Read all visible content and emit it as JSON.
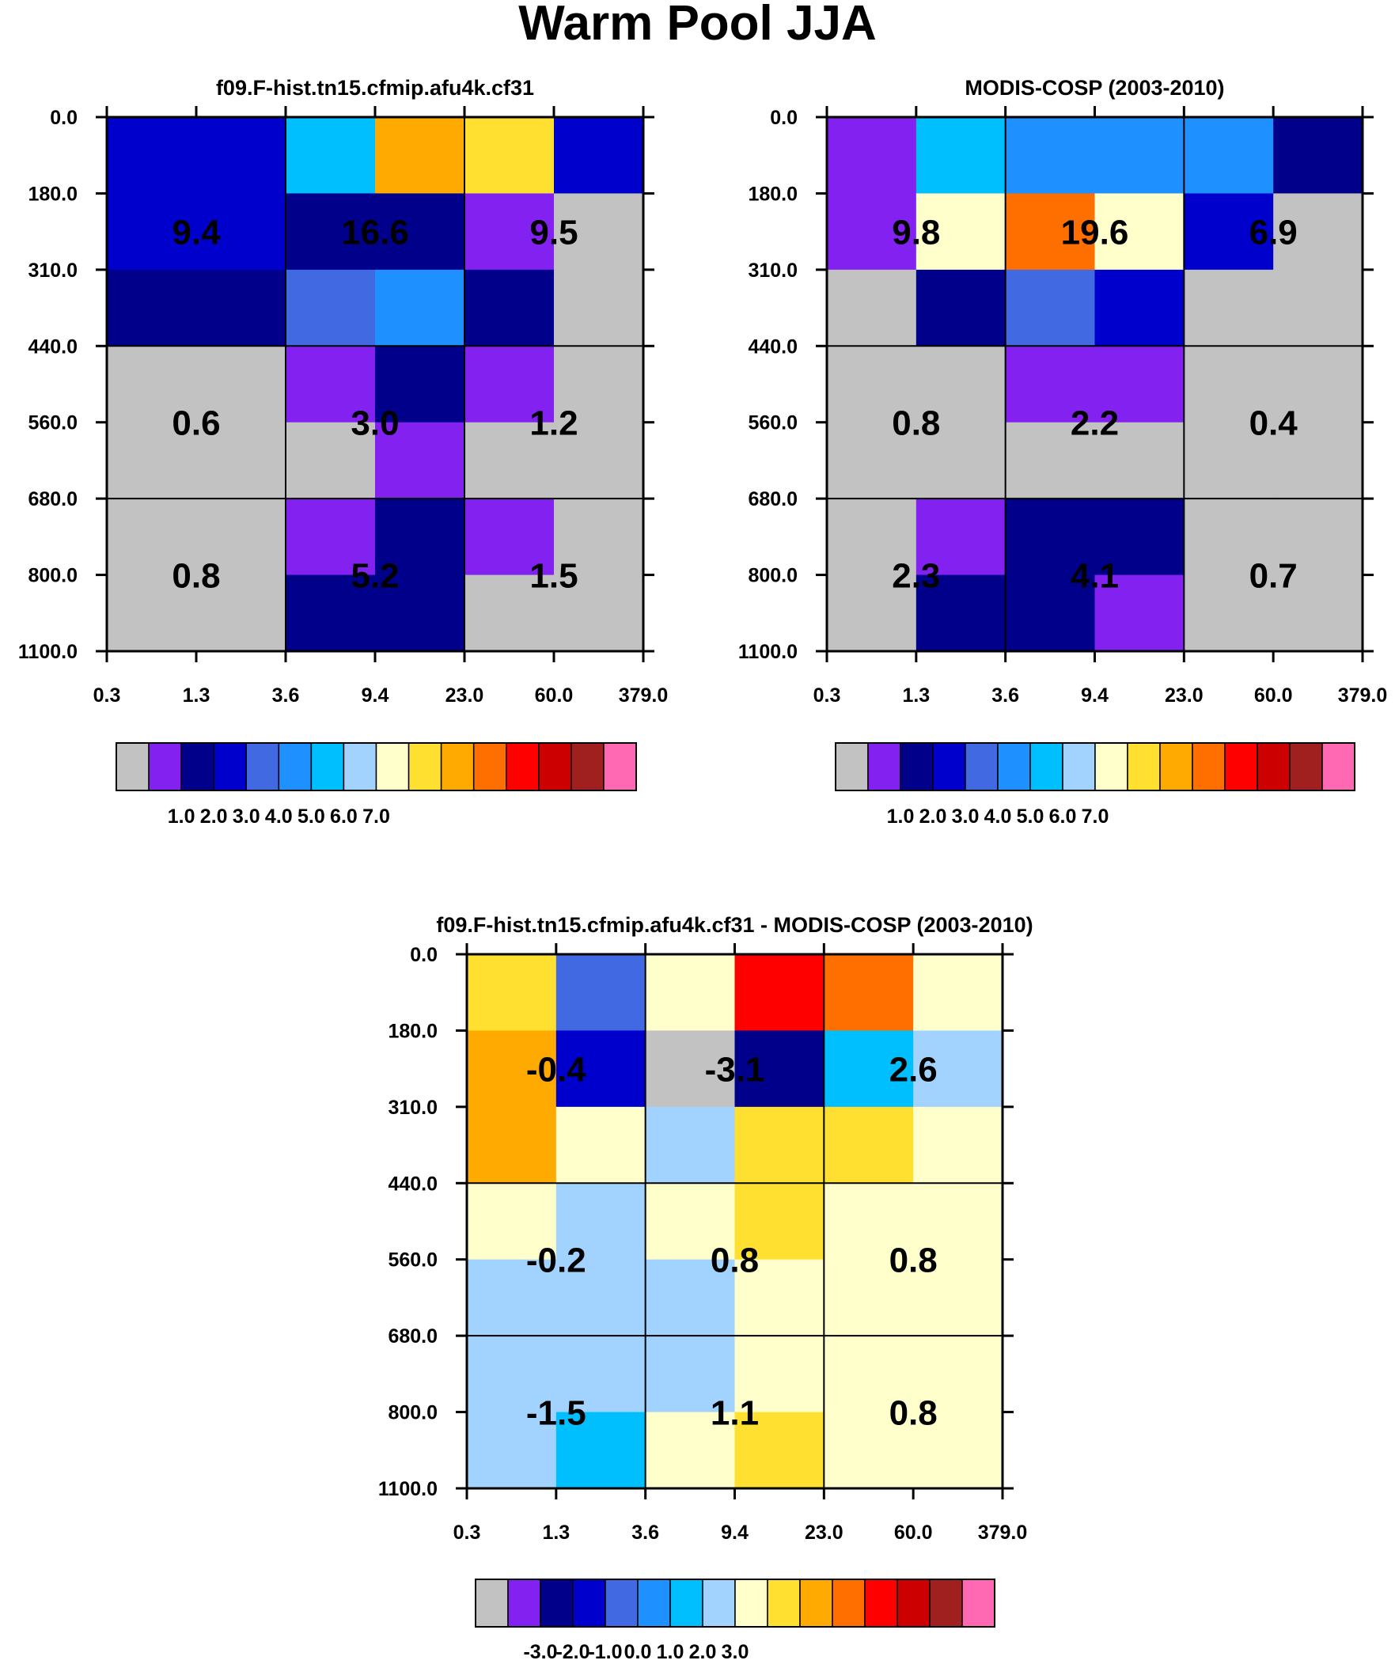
{
  "page_title": "Warm Pool JJA",
  "chart_data": [
    {
      "type": "heatmap",
      "title": "f09.F-hist.tn15.cfmip.afu4k.cf31",
      "x_ticks": [
        "0.3",
        "1.3",
        "3.6",
        "9.4",
        "23.0",
        "60.0",
        "379.0"
      ],
      "y_ticks": [
        "0.0",
        "180.0",
        "310.0",
        "440.0",
        "560.0",
        "680.0",
        "800.0",
        "1100.0"
      ],
      "cells": [
        [
          3,
          3,
          6,
          10,
          9,
          3
        ],
        [
          3,
          3,
          2,
          2,
          1,
          0
        ],
        [
          2,
          2,
          4,
          5,
          2,
          0
        ],
        [
          0,
          0,
          1,
          2,
          1,
          0
        ],
        [
          0,
          0,
          0,
          1,
          0,
          0
        ],
        [
          0,
          0,
          1,
          2,
          1,
          0
        ],
        [
          0,
          0,
          2,
          2,
          0,
          0
        ]
      ],
      "box_values": [
        [
          "9.4",
          "16.6",
          "9.5"
        ],
        [
          "0.6",
          "3.0",
          "1.2"
        ],
        [
          "0.8",
          "5.2",
          "1.5"
        ]
      ],
      "colorbar_labels": [
        "1.0",
        "2.0",
        "3.0",
        "4.0",
        "5.0",
        "6.0",
        "7.0"
      ]
    },
    {
      "type": "heatmap",
      "title": "MODIS-COSP (2003-2010)",
      "x_ticks": [
        "0.3",
        "1.3",
        "3.6",
        "9.4",
        "23.0",
        "60.0",
        "379.0"
      ],
      "y_ticks": [
        "0.0",
        "180.0",
        "310.0",
        "440.0",
        "560.0",
        "680.0",
        "800.0",
        "1100.0"
      ],
      "cells": [
        [
          1,
          6,
          5,
          5,
          5,
          2
        ],
        [
          1,
          8,
          11,
          8,
          3,
          0
        ],
        [
          0,
          2,
          4,
          3,
          0,
          0
        ],
        [
          0,
          0,
          1,
          1,
          0,
          0
        ],
        [
          0,
          0,
          0,
          0,
          0,
          0
        ],
        [
          0,
          1,
          2,
          2,
          0,
          0
        ],
        [
          0,
          2,
          2,
          1,
          0,
          0
        ]
      ],
      "box_values": [
        [
          "9.8",
          "19.6",
          "6.9"
        ],
        [
          "0.8",
          "2.2",
          "0.4"
        ],
        [
          "2.3",
          "4.1",
          "0.7"
        ]
      ],
      "colorbar_labels": [
        "1.0",
        "2.0",
        "3.0",
        "4.0",
        "5.0",
        "6.0",
        "7.0"
      ]
    },
    {
      "type": "heatmap",
      "title": "f09.F-hist.tn15.cfmip.afu4k.cf31 - MODIS-COSP (2003-2010)",
      "x_ticks": [
        "0.3",
        "1.3",
        "3.6",
        "9.4",
        "23.0",
        "60.0",
        "379.0"
      ],
      "y_ticks": [
        "0.0",
        "180.0",
        "310.0",
        "440.0",
        "560.0",
        "680.0",
        "800.0",
        "1100.0"
      ],
      "cells": [
        [
          9,
          4,
          8,
          12,
          11,
          8
        ],
        [
          10,
          3,
          0,
          2,
          6,
          7
        ],
        [
          10,
          8,
          7,
          9,
          9,
          8
        ],
        [
          8,
          7,
          8,
          9,
          8,
          8
        ],
        [
          7,
          7,
          7,
          8,
          8,
          8
        ],
        [
          7,
          7,
          7,
          8,
          8,
          8
        ],
        [
          7,
          6,
          8,
          9,
          8,
          8
        ]
      ],
      "box_values": [
        [
          "-0.4",
          "-3.1",
          "2.6"
        ],
        [
          "-0.2",
          "0.8",
          "0.8"
        ],
        [
          "-1.5",
          "1.1",
          "0.8"
        ]
      ],
      "colorbar_labels": [
        "-3.0",
        "-2.0",
        "-1.0",
        "0.0",
        "1.0",
        "2.0",
        "3.0"
      ]
    }
  ],
  "palette": [
    "#c2c2c2",
    "#8322f0",
    "#00008a",
    "#0000cc",
    "#4169e1",
    "#1e90ff",
    "#00bfff",
    "#a2d3ff",
    "#ffffcc",
    "#ffe030",
    "#ffaa00",
    "#ff6f00",
    "#ff0000",
    "#cc0000",
    "#a02020",
    "#ff69b4"
  ]
}
